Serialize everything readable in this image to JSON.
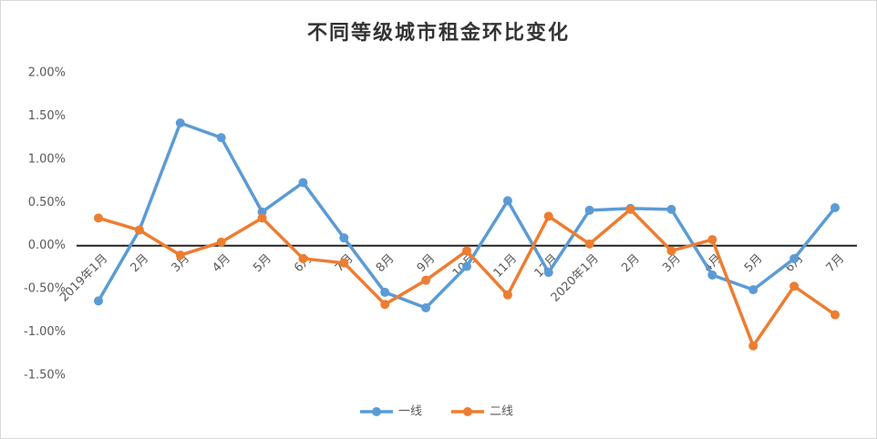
{
  "chart_data": {
    "type": "line",
    "title": "不同等级城市租金环比变化",
    "categories": [
      "2019年1月",
      "2月",
      "3月",
      "4月",
      "5月",
      "6月",
      "7月",
      "8月",
      "9月",
      "10月",
      "11月",
      "12月",
      "2020年1月",
      "2月",
      "3月",
      "4月",
      "5月",
      "6月",
      "7月"
    ],
    "series": [
      {
        "name": "一线",
        "color": "#5b9bd5",
        "values": [
          -0.64,
          0.18,
          1.42,
          1.25,
          0.39,
          0.73,
          0.09,
          -0.54,
          -0.72,
          -0.24,
          0.52,
          -0.31,
          0.41,
          0.43,
          0.42,
          -0.34,
          -0.51,
          -0.15,
          0.44
        ]
      },
      {
        "name": "二线",
        "color": "#ed7d31",
        "values": [
          0.32,
          0.18,
          -0.11,
          0.04,
          0.32,
          -0.15,
          -0.2,
          -0.68,
          -0.4,
          -0.06,
          -0.57,
          0.34,
          0.02,
          0.42,
          -0.06,
          0.07,
          -1.16,
          -0.47,
          -0.8
        ]
      }
    ],
    "ylim": [
      -1.5,
      2.0
    ],
    "yticks": [
      {
        "value": 2.0,
        "label": "2.00%"
      },
      {
        "value": 1.5,
        "label": "1.50%"
      },
      {
        "value": 1.0,
        "label": "1.00%"
      },
      {
        "value": 0.5,
        "label": "0.50%"
      },
      {
        "value": 0,
        "label": "0.00%"
      },
      {
        "value": -0.5,
        "label": "-0.50%"
      },
      {
        "value": -1.0,
        "label": "-1.00%"
      },
      {
        "value": -1.5,
        "label": "-1.50%"
      }
    ],
    "grid": false,
    "legend": "bottom"
  }
}
